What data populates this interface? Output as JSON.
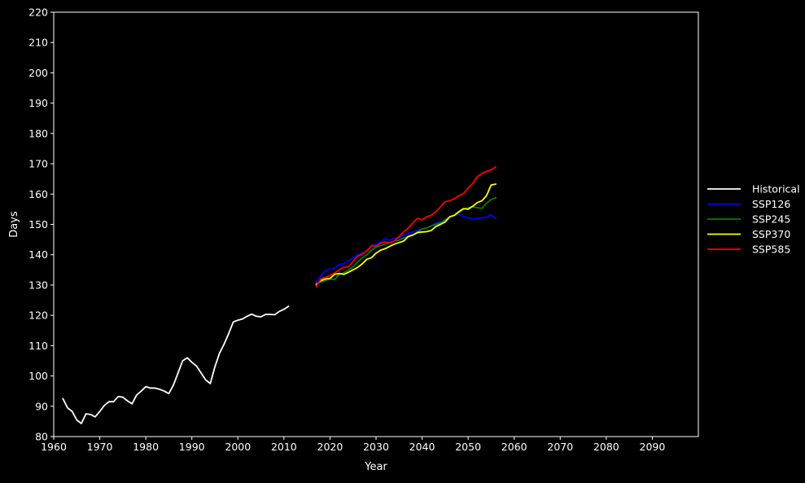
{
  "chart_data": {
    "type": "line",
    "title": "",
    "xlabel": "Year",
    "ylabel": "Days",
    "xlim": [
      1960,
      2100
    ],
    "ylim": [
      80,
      220
    ],
    "x_ticks": [
      1960,
      1970,
      1980,
      1990,
      2000,
      2010,
      2020,
      2030,
      2040,
      2050,
      2060,
      2070,
      2080,
      2090
    ],
    "y_ticks": [
      80,
      90,
      100,
      110,
      120,
      130,
      140,
      150,
      160,
      170,
      180,
      190,
      200,
      210,
      220
    ],
    "grid": false,
    "legend_position": "right",
    "background": "#000000",
    "axes_color": "#ffffff",
    "series": [
      {
        "name": "Historical",
        "color": "#ffffff",
        "x": [
          1962,
          1963,
          1964,
          1965,
          1966,
          1967,
          1968,
          1969,
          1970,
          1971,
          1972,
          1973,
          1974,
          1975,
          1976,
          1977,
          1978,
          1979,
          1980,
          1981,
          1982,
          1983,
          1984,
          1985,
          1986,
          1987,
          1988,
          1989,
          1990,
          1991,
          1992,
          1993,
          1994,
          1995,
          1996,
          1997,
          1998,
          1999,
          2000,
          2001,
          2002,
          2003,
          2004,
          2005,
          2006,
          2007,
          2008,
          2009,
          2010,
          2011
        ],
        "y": [
          92.5,
          89.5,
          88.3,
          85.5,
          84.3,
          87.5,
          87.3,
          86.5,
          88.3,
          90.3,
          91.5,
          91.5,
          93.2,
          93.0,
          91.8,
          90.8,
          93.7,
          95.0,
          96.5,
          96.0,
          96.0,
          95.6,
          95.0,
          94.2,
          97.0,
          101.0,
          105.0,
          106.0,
          104.5,
          103.3,
          101.0,
          98.7,
          97.5,
          103.0,
          107.5,
          110.5,
          114.0,
          117.8,
          118.4,
          118.8,
          119.7,
          120.4,
          119.7,
          119.5,
          120.3,
          120.3,
          120.2,
          121.3,
          122.0,
          123.0
        ]
      },
      {
        "name": "SSP126",
        "color": "#0000ff",
        "x": [
          2017,
          2018,
          2019,
          2020,
          2021,
          2022,
          2023,
          2024,
          2025,
          2026,
          2027,
          2028,
          2029,
          2030,
          2031,
          2032,
          2033,
          2034,
          2035,
          2036,
          2037,
          2038,
          2039,
          2040,
          2041,
          2042,
          2043,
          2044,
          2045,
          2046,
          2047,
          2048,
          2049,
          2050,
          2051,
          2052,
          2053,
          2054,
          2055,
          2056
        ],
        "y": [
          131.0,
          133.0,
          134.8,
          135.2,
          135.6,
          136.8,
          137.0,
          138.0,
          139.0,
          140.0,
          140.5,
          141.3,
          142.8,
          143.5,
          144.2,
          145.3,
          144.8,
          145.5,
          145.6,
          146.5,
          147.0,
          147.5,
          148.0,
          148.5,
          148.8,
          149.5,
          150.5,
          150.8,
          151.5,
          152.5,
          153.0,
          153.2,
          152.6,
          152.2,
          151.8,
          152.0,
          152.2,
          152.3,
          153.2,
          152.0
        ]
      },
      {
        "name": "SSP245",
        "color": "#008000",
        "x": [
          2017,
          2018,
          2019,
          2020,
          2021,
          2022,
          2023,
          2024,
          2025,
          2026,
          2027,
          2028,
          2029,
          2030,
          2031,
          2032,
          2033,
          2034,
          2035,
          2036,
          2037,
          2038,
          2039,
          2040,
          2041,
          2042,
          2043,
          2044,
          2045,
          2046,
          2047,
          2048,
          2049,
          2050,
          2051,
          2052,
          2053,
          2054,
          2055,
          2056
        ],
        "y": [
          130.5,
          131.0,
          131.5,
          132.0,
          131.8,
          133.5,
          134.0,
          135.0,
          136.0,
          137.5,
          139.0,
          140.0,
          141.5,
          142.5,
          143.0,
          143.5,
          144.0,
          144.5,
          144.8,
          145.5,
          146.0,
          146.5,
          147.5,
          148.5,
          148.8,
          149.5,
          150.0,
          150.5,
          151.5,
          152.5,
          153.0,
          154.0,
          155.0,
          155.5,
          155.8,
          155.5,
          155.3,
          157.0,
          158.2,
          158.8
        ]
      },
      {
        "name": "SSP370",
        "color": "#ffff00",
        "x": [
          2017,
          2018,
          2019,
          2020,
          2021,
          2022,
          2023,
          2024,
          2025,
          2026,
          2027,
          2028,
          2029,
          2030,
          2031,
          2032,
          2033,
          2034,
          2035,
          2036,
          2037,
          2038,
          2039,
          2040,
          2041,
          2042,
          2043,
          2044,
          2045,
          2046,
          2047,
          2048,
          2049,
          2050,
          2051,
          2052,
          2053,
          2054,
          2055,
          2056
        ],
        "y": [
          130.0,
          131.5,
          132.0,
          132.2,
          133.5,
          133.8,
          133.5,
          134.2,
          135.0,
          135.8,
          137.0,
          138.5,
          139.0,
          140.5,
          141.5,
          142.0,
          142.8,
          143.5,
          144.0,
          144.5,
          146.0,
          146.5,
          147.3,
          147.5,
          147.6,
          148.0,
          149.3,
          150.0,
          150.8,
          152.5,
          153.0,
          154.2,
          155.2,
          155.0,
          156.0,
          157.2,
          157.8,
          159.5,
          163.0,
          163.3
        ]
      },
      {
        "name": "SSP585",
        "color": "#ff0000",
        "x": [
          2017,
          2018,
          2019,
          2020,
          2021,
          2022,
          2023,
          2024,
          2025,
          2026,
          2027,
          2028,
          2029,
          2030,
          2031,
          2032,
          2033,
          2034,
          2035,
          2036,
          2037,
          2038,
          2039,
          2040,
          2041,
          2042,
          2043,
          2044,
          2045,
          2046,
          2047,
          2048,
          2049,
          2050,
          2051,
          2052,
          2053,
          2054,
          2055,
          2056
        ],
        "y": [
          129.5,
          132.0,
          132.5,
          133.2,
          134.0,
          135.0,
          135.8,
          136.0,
          137.8,
          139.5,
          140.2,
          141.2,
          143.0,
          142.8,
          143.8,
          144.2,
          144.0,
          144.5,
          146.0,
          147.5,
          148.8,
          150.5,
          152.0,
          151.5,
          152.5,
          153.0,
          154.2,
          155.8,
          157.5,
          157.8,
          158.5,
          159.5,
          160.2,
          162.0,
          163.5,
          165.8,
          166.8,
          167.5,
          168.0,
          169.0
        ]
      }
    ]
  }
}
